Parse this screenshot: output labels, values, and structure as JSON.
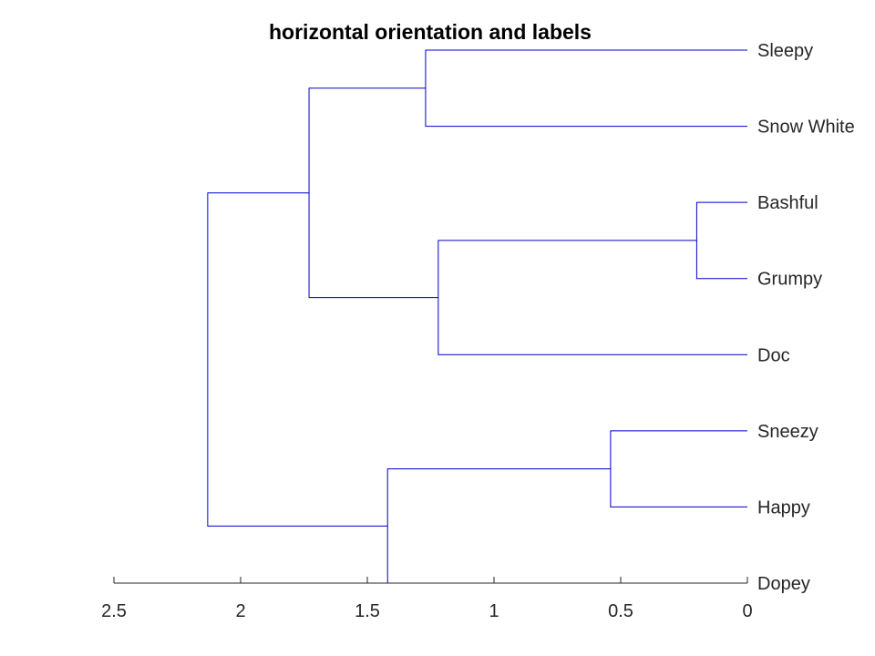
{
  "chart_data": {
    "type": "dendrogram",
    "title": "horizontal orientation and labels",
    "orientation": "left",
    "line_color": "#0000c8",
    "xlim": [
      2.5,
      0
    ],
    "xticks": [
      2.5,
      2,
      1.5,
      1,
      0.5,
      0
    ],
    "xtick_labels": [
      "2.5",
      "2",
      "1.5",
      "1",
      "0.5",
      "0"
    ],
    "leaves": [
      "Sleepy",
      "Snow White",
      "Bashful",
      "Grumpy",
      "Doc",
      "Sneezy",
      "Happy",
      "Dopey"
    ],
    "links": [
      {
        "id": "bashful-grumpy",
        "children": [
          2,
          3
        ],
        "height": 0.2
      },
      {
        "id": "sneezy-happy",
        "children": [
          5,
          6
        ],
        "height": 0.54
      },
      {
        "id": "bashful-grumpy-doc",
        "children": [
          "bashful-grumpy",
          4
        ],
        "height": 1.22
      },
      {
        "id": "sleepy-snowwhite",
        "children": [
          0,
          1
        ],
        "height": 1.27
      },
      {
        "id": "sneezy-happy-dopey",
        "children": [
          "sneezy-happy",
          7
        ],
        "height": 1.42
      },
      {
        "id": "upper-cluster",
        "children": [
          "sleepy-snowwhite",
          "bashful-grumpy-doc"
        ],
        "height": 1.73
      },
      {
        "id": "root",
        "children": [
          "upper-cluster",
          "sneezy-happy-dopey"
        ],
        "height": 2.13
      }
    ]
  }
}
